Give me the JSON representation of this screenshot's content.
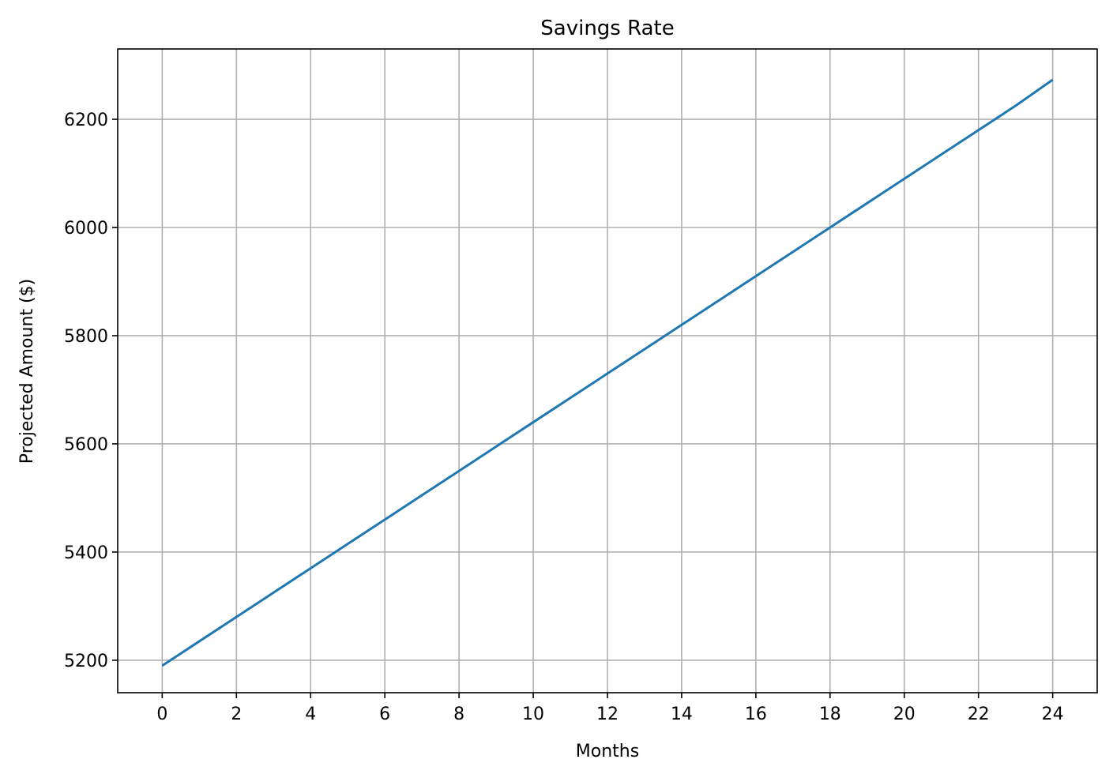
{
  "chart_data": {
    "type": "line",
    "title": "Savings Rate",
    "xlabel": "Months",
    "ylabel": "Projected Amount ($)",
    "xlim": [
      -1.2,
      25.2
    ],
    "ylim": [
      5140,
      6330
    ],
    "x_ticks": [
      0,
      2,
      4,
      6,
      8,
      10,
      12,
      14,
      16,
      18,
      20,
      22,
      24
    ],
    "y_ticks": [
      5200,
      5400,
      5600,
      5800,
      6000,
      6200
    ],
    "grid": true,
    "series": [
      {
        "color": "#1f77b4",
        "x": [
          0,
          1,
          2,
          3,
          4,
          5,
          6,
          7,
          8,
          9,
          10,
          11,
          12,
          13,
          14,
          15,
          16,
          17,
          18,
          19,
          20,
          21,
          22,
          23,
          24
        ],
        "y": [
          5190,
          5235,
          5280,
          5325,
          5370,
          5415,
          5460,
          5505,
          5550,
          5595,
          5640,
          5685,
          5730,
          5775,
          5820,
          5865,
          5910,
          5955,
          6000,
          6045,
          6090,
          6135,
          6180,
          6225,
          6273
        ]
      }
    ]
  }
}
